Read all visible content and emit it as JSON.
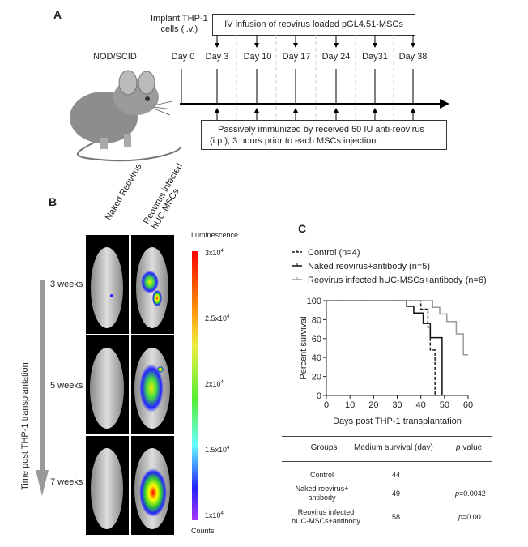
{
  "panel_a": {
    "letter": "A",
    "strain": "NOD/SCID",
    "implant_label_line1": "Implant THP-1",
    "implant_label_line2": "cells (i.v.)",
    "infusion_box": "IV infusion of reovirus loaded pGL4.51-MSCs",
    "days": [
      "Day 0",
      "Day 3",
      "Day 10",
      "Day 17",
      "Day 24",
      "Day31",
      "Day 38"
    ],
    "immunize_line1": "Passively immunized by received 50 IU anti-reovirus",
    "immunize_line2": "(i.p.), 3 hours prior to each MSCs injection."
  },
  "panel_b": {
    "letter": "B",
    "columns": [
      "Naked Reovirus",
      "Reovirus infected",
      "hUC-MSCs"
    ],
    "axis_label": "Time post THP-1 transplantation",
    "rows": [
      "3 weeks",
      "5 weeks",
      "7 weeks"
    ],
    "colorbar_title": "Luminescence",
    "colorbar_unit": "Counts",
    "colorbar_ticks": [
      {
        "base": "3x10",
        "exp": "4"
      },
      {
        "base": "2.5x10",
        "exp": "4"
      },
      {
        "base": "2x10",
        "exp": "4"
      },
      {
        "base": "1.5x10",
        "exp": "4"
      },
      {
        "base": "1x10",
        "exp": "4"
      }
    ]
  },
  "chart_data": {
    "type": "line",
    "letter": "C",
    "title": "",
    "xlabel": "Days post THP-1 transplantation",
    "ylabel": "Percent survival",
    "xlim": [
      0,
      60
    ],
    "ylim": [
      0,
      100
    ],
    "xticks": [
      "0",
      "10",
      "20",
      "30",
      "40",
      "50",
      "60"
    ],
    "yticks": [
      "0",
      "20",
      "40",
      "60",
      "80",
      "100"
    ],
    "legend_placement": "top-left",
    "series": [
      {
        "name": "Control (n=4)",
        "style": "dashed",
        "color": "#222222",
        "steps": [
          [
            0,
            100
          ],
          [
            40,
            91
          ],
          [
            43,
            72
          ],
          [
            44,
            48
          ],
          [
            46,
            0
          ]
        ]
      },
      {
        "name": "Naked reovirus+antibody (n=5)",
        "style": "solid",
        "color": "#111111",
        "steps": [
          [
            0,
            100
          ],
          [
            34,
            94
          ],
          [
            37,
            87
          ],
          [
            41,
            76
          ],
          [
            44,
            61
          ],
          [
            49,
            0
          ]
        ]
      },
      {
        "name": "Reovirus infected hUC-MSCs+antibody (n=6)",
        "style": "solid",
        "color": "#999999",
        "steps": [
          [
            0,
            100
          ],
          [
            45,
            93
          ],
          [
            48,
            86
          ],
          [
            51,
            78
          ],
          [
            55,
            65
          ],
          [
            58,
            43
          ],
          [
            60,
            43
          ]
        ]
      }
    ]
  },
  "table": {
    "headers": [
      "Groups",
      "Medium survival (day)",
      "p",
      " value"
    ],
    "rows": [
      {
        "group_line1": "Control",
        "group_line2": "",
        "median": "44",
        "p_prefix": "",
        "p_value": ""
      },
      {
        "group_line1": "Naked reovirus+",
        "group_line2": "antibody",
        "median": "49",
        "p_prefix": "p",
        "p_value": "=0.0042"
      },
      {
        "group_line1": "Reovirus infected",
        "group_line2": "hUC-MSCs+antibody",
        "median": "58",
        "p_prefix": "p",
        "p_value": "=0.001"
      }
    ]
  }
}
